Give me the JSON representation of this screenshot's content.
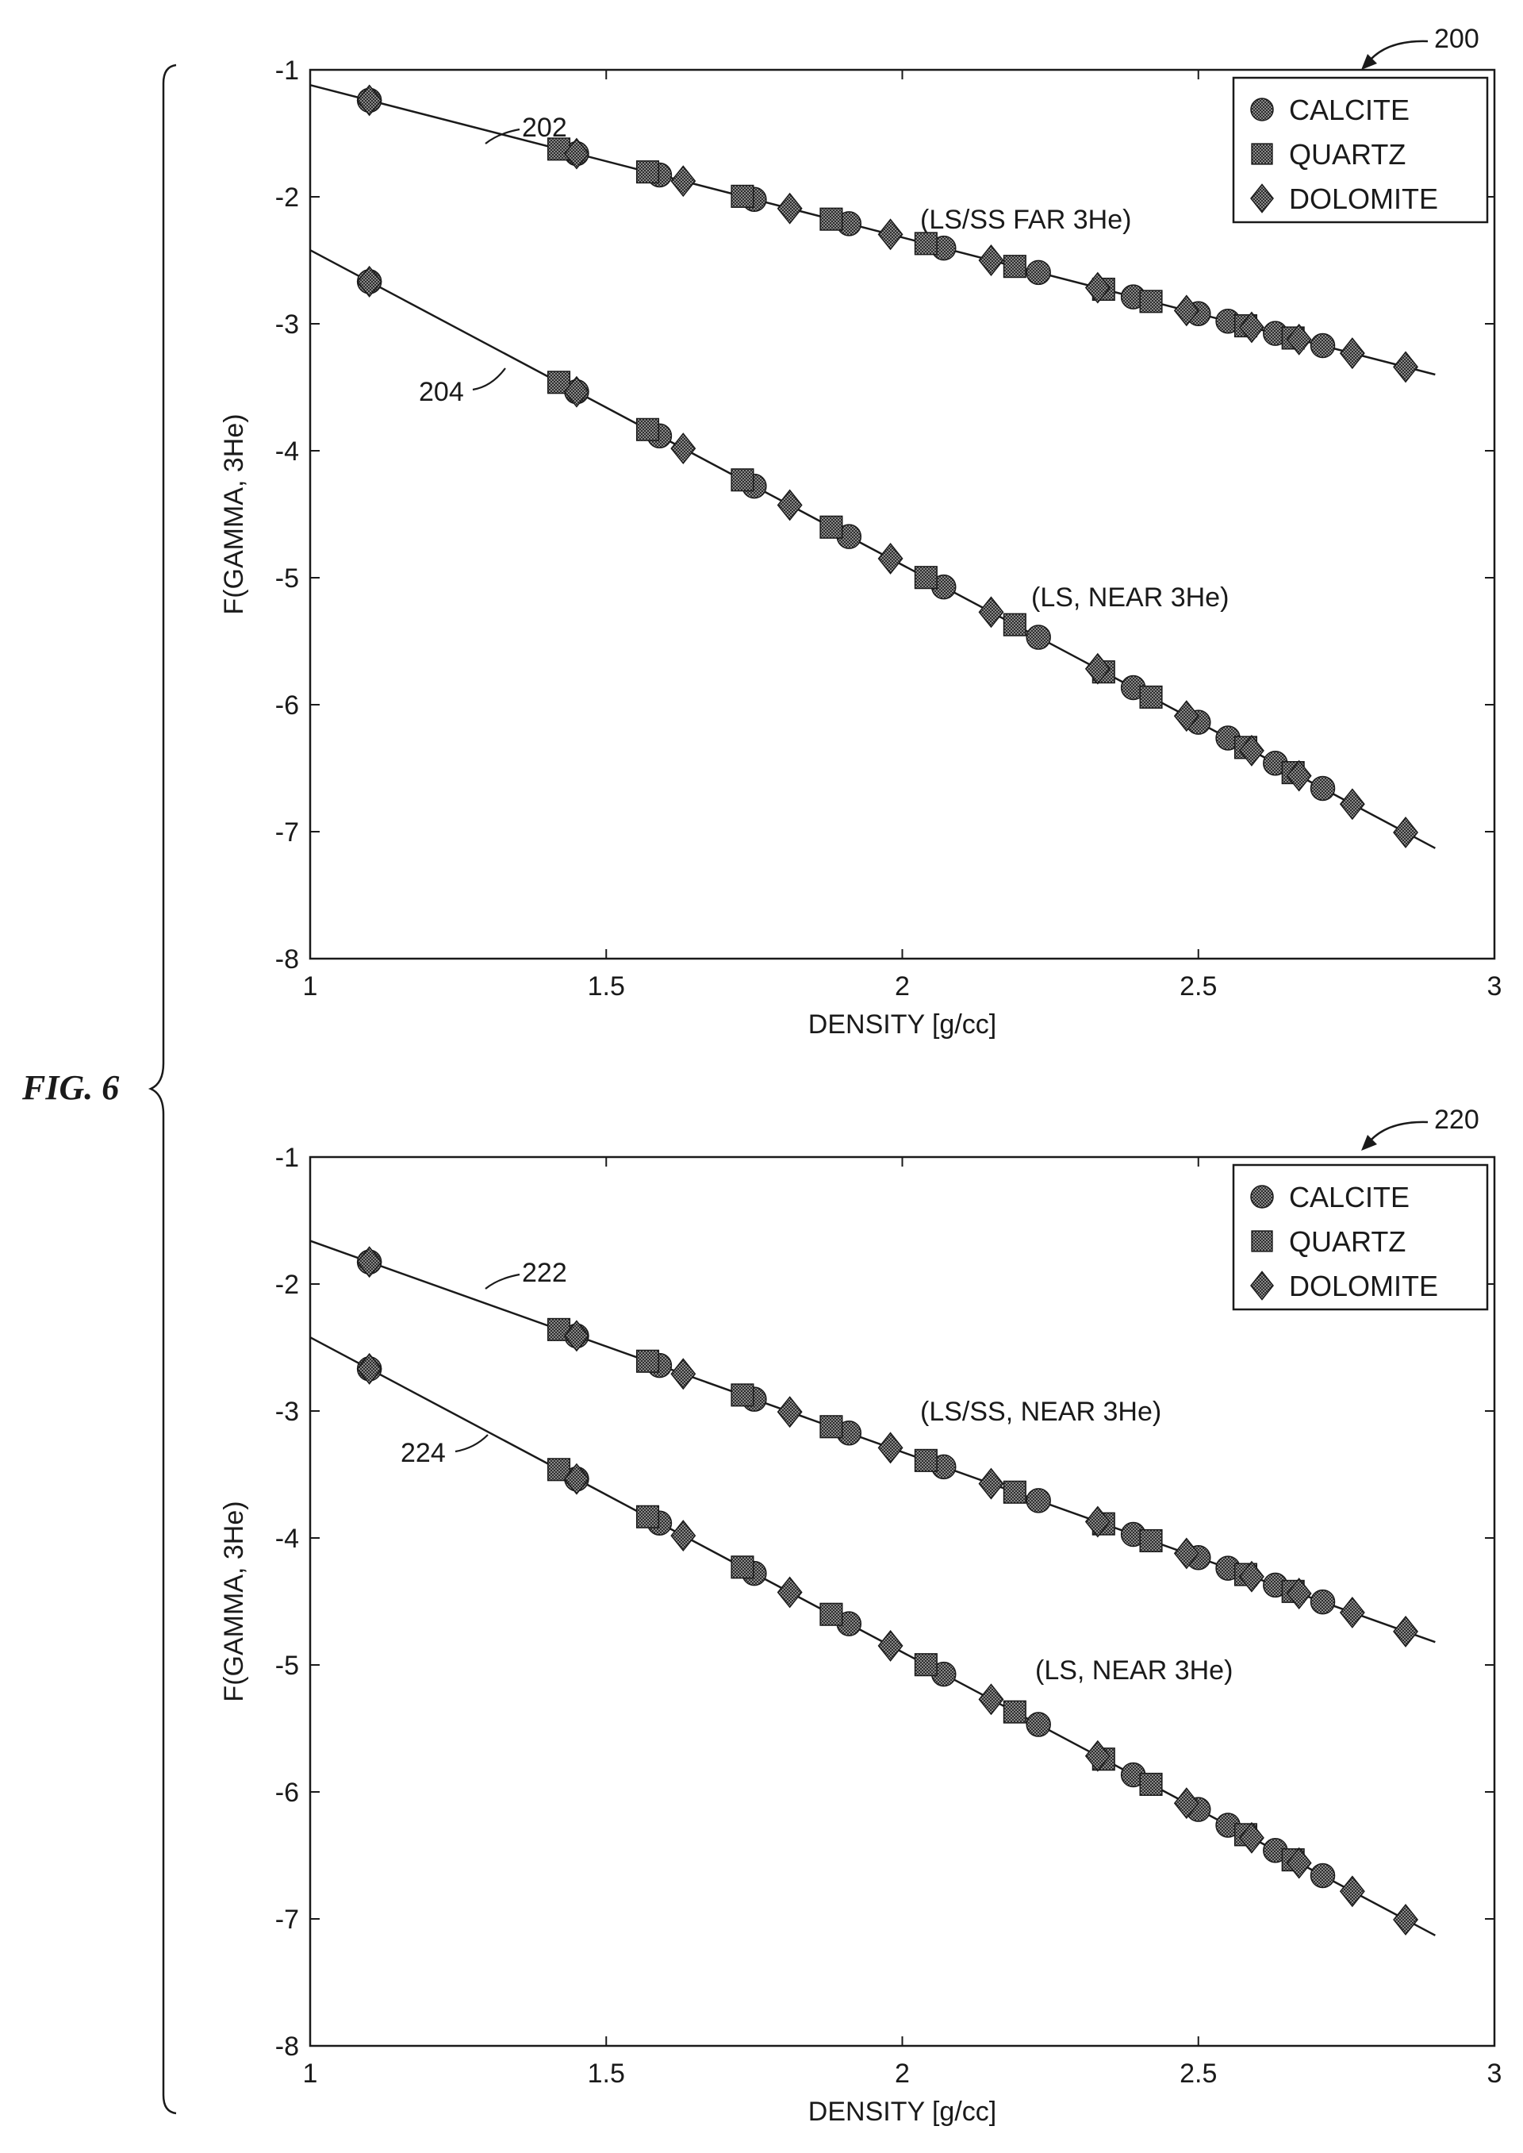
{
  "figure": {
    "label": "FIG. 6"
  },
  "chart_data": [
    {
      "type": "scatter",
      "ref_number": "200",
      "xlabel": "DENSITY [g/cc]",
      "ylabel": "F(GAMMA, 3He)",
      "xlim": [
        1,
        3
      ],
      "ylim": [
        -8,
        -1
      ],
      "xticks": [
        1,
        1.5,
        2,
        2.5,
        3
      ],
      "xtick_labels": [
        "1",
        "1.5",
        "2",
        "2.5",
        "3"
      ],
      "yticks": [
        -1,
        -2,
        -3,
        -4,
        -5,
        -6,
        -7,
        -8
      ],
      "ytick_labels": [
        "-1",
        "-2",
        "-3",
        "-4",
        "-5",
        "-6",
        "-7",
        "-8"
      ],
      "grid": false,
      "legend": {
        "position": "top-right",
        "entries": [
          {
            "name": "CALCITE",
            "marker": "circle"
          },
          {
            "name": "QUARTZ",
            "marker": "square"
          },
          {
            "name": "DOLOMITE",
            "marker": "diamond"
          }
        ]
      },
      "fit_lines": [
        {
          "ref": "202",
          "label": "(LS/SS FAR 3He)",
          "x": [
            1,
            2.9
          ],
          "y": [
            -1.12,
            -3.4
          ]
        },
        {
          "ref": "204",
          "label": "(LS, NEAR 3He)",
          "x": [
            1,
            2.9
          ],
          "y": [
            -2.42,
            -7.13
          ]
        }
      ],
      "series": [
        {
          "name": "CALCITE",
          "marker": "circle",
          "fit": 0,
          "x": [
            1.1,
            1.45,
            1.59,
            1.75,
            1.91,
            2.07,
            2.23,
            2.39,
            2.5,
            2.55,
            2.63,
            2.71
          ]
        },
        {
          "name": "QUARTZ",
          "marker": "square",
          "fit": 0,
          "x": [
            1.42,
            1.57,
            1.73,
            1.88,
            2.04,
            2.19,
            2.34,
            2.42,
            2.58,
            2.66
          ]
        },
        {
          "name": "DOLOMITE",
          "marker": "diamond",
          "fit": 0,
          "x": [
            1.1,
            1.45,
            1.63,
            1.81,
            1.98,
            2.15,
            2.33,
            2.48,
            2.59,
            2.67,
            2.76,
            2.85
          ]
        },
        {
          "name": "CALCITE",
          "marker": "circle",
          "fit": 1,
          "x": [
            1.1,
            1.45,
            1.59,
            1.75,
            1.91,
            2.07,
            2.23,
            2.39,
            2.5,
            2.55,
            2.63,
            2.71
          ]
        },
        {
          "name": "QUARTZ",
          "marker": "square",
          "fit": 1,
          "x": [
            1.42,
            1.57,
            1.73,
            1.88,
            2.04,
            2.19,
            2.34,
            2.42,
            2.58,
            2.66
          ]
        },
        {
          "name": "DOLOMITE",
          "marker": "diamond",
          "fit": 1,
          "x": [
            1.1,
            1.45,
            1.63,
            1.81,
            1.98,
            2.15,
            2.33,
            2.48,
            2.59,
            2.67,
            2.76,
            2.85
          ]
        }
      ]
    },
    {
      "type": "scatter",
      "ref_number": "220",
      "xlabel": "DENSITY [g/cc]",
      "ylabel": "F(GAMMA, 3He)",
      "xlim": [
        1,
        3
      ],
      "ylim": [
        -8,
        -1
      ],
      "xticks": [
        1,
        1.5,
        2,
        2.5,
        3
      ],
      "xtick_labels": [
        "1",
        "1.5",
        "2",
        "2.5",
        "3"
      ],
      "yticks": [
        -1,
        -2,
        -3,
        -4,
        -5,
        -6,
        -7,
        -8
      ],
      "ytick_labels": [
        "-1",
        "-2",
        "-3",
        "-4",
        "-5",
        "-6",
        "-7",
        "-8"
      ],
      "grid": false,
      "legend": {
        "position": "top-right",
        "entries": [
          {
            "name": "CALCITE",
            "marker": "circle"
          },
          {
            "name": "QUARTZ",
            "marker": "square"
          },
          {
            "name": "DOLOMITE",
            "marker": "diamond"
          }
        ]
      },
      "fit_lines": [
        {
          "ref": "222",
          "label": "(LS/SS, NEAR 3He)",
          "x": [
            1,
            2.9
          ],
          "y": [
            -1.66,
            -4.82
          ]
        },
        {
          "ref": "224",
          "label": "(LS, NEAR 3He)",
          "x": [
            1,
            2.9
          ],
          "y": [
            -2.42,
            -7.13
          ]
        }
      ],
      "series": [
        {
          "name": "CALCITE",
          "marker": "circle",
          "fit": 0,
          "x": [
            1.1,
            1.45,
            1.59,
            1.75,
            1.91,
            2.07,
            2.23,
            2.39,
            2.5,
            2.55,
            2.63,
            2.71
          ]
        },
        {
          "name": "QUARTZ",
          "marker": "square",
          "fit": 0,
          "x": [
            1.42,
            1.57,
            1.73,
            1.88,
            2.04,
            2.19,
            2.34,
            2.42,
            2.58,
            2.66
          ]
        },
        {
          "name": "DOLOMITE",
          "marker": "diamond",
          "fit": 0,
          "x": [
            1.1,
            1.45,
            1.63,
            1.81,
            1.98,
            2.15,
            2.33,
            2.48,
            2.59,
            2.67,
            2.76,
            2.85
          ]
        },
        {
          "name": "CALCITE",
          "marker": "circle",
          "fit": 1,
          "x": [
            1.1,
            1.45,
            1.59,
            1.75,
            1.91,
            2.07,
            2.23,
            2.39,
            2.5,
            2.55,
            2.63,
            2.71
          ]
        },
        {
          "name": "QUARTZ",
          "marker": "square",
          "fit": 1,
          "x": [
            1.42,
            1.57,
            1.73,
            1.88,
            2.04,
            2.19,
            2.34,
            2.42,
            2.58,
            2.66
          ]
        },
        {
          "name": "DOLOMITE",
          "marker": "diamond",
          "fit": 1,
          "x": [
            1.1,
            1.45,
            1.63,
            1.81,
            1.98,
            2.15,
            2.33,
            2.48,
            2.59,
            2.67,
            2.76,
            2.85
          ]
        }
      ]
    }
  ]
}
